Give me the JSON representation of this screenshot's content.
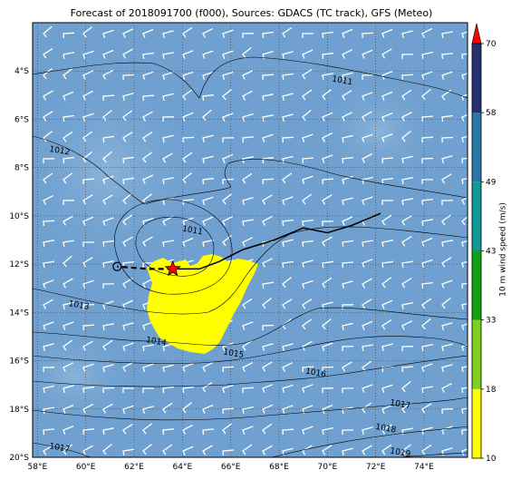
{
  "title": "Forecast of 2018091700 (f000), Sources: GDACS (TC track), GFS (Meteo)",
  "map": {
    "lon_range": [
      57.8,
      75.8
    ],
    "lat_range": [
      -20,
      -2
    ],
    "lat_labels": [
      "4°S",
      "6°S",
      "8°S",
      "10°S",
      "12°S",
      "14°S",
      "16°S",
      "18°S",
      "20°S"
    ],
    "lat_values": [
      -4,
      -6,
      -8,
      -10,
      -12,
      -14,
      -16,
      -18,
      -20
    ],
    "lon_labels": [
      "58°E",
      "60°E",
      "62°E",
      "64°E",
      "66°E",
      "68°E",
      "70°E",
      "72°E",
      "74°E"
    ],
    "lon_values": [
      58,
      60,
      62,
      64,
      66,
      68,
      70,
      72,
      74
    ],
    "ocean_color": "#6fa0cf",
    "isobar_labels": [
      {
        "text": "1011",
        "lon": 70.6,
        "lat": -4.5
      },
      {
        "text": "1012",
        "lon": 58.9,
        "lat": -7.4
      },
      {
        "text": "1011",
        "lon": 64.4,
        "lat": -10.7
      },
      {
        "text": "1013",
        "lon": 59.7,
        "lat": -13.8
      },
      {
        "text": "1014",
        "lon": 62.9,
        "lat": -15.3
      },
      {
        "text": "1015",
        "lon": 66.1,
        "lat": -15.8
      },
      {
        "text": "1016",
        "lon": 69.5,
        "lat": -16.6
      },
      {
        "text": "1017",
        "lon": 73.0,
        "lat": -17.9
      },
      {
        "text": "1018",
        "lon": 72.4,
        "lat": -18.9
      },
      {
        "text": "1019",
        "lon": 73.0,
        "lat": -19.9
      },
      {
        "text": "1017",
        "lon": 58.9,
        "lat": -19.7
      }
    ]
  },
  "track": {
    "observed": [
      [
        72.2,
        -9.9
      ],
      [
        71.0,
        -10.4
      ],
      [
        70.0,
        -10.7
      ],
      [
        69.0,
        -10.5
      ],
      [
        67.8,
        -11.0
      ],
      [
        66.5,
        -11.4
      ],
      [
        65.5,
        -11.9
      ],
      [
        64.7,
        -12.2
      ],
      [
        63.6,
        -12.2
      ]
    ],
    "forecast": [
      [
        63.6,
        -12.2
      ],
      [
        62.6,
        -12.2
      ],
      [
        61.3,
        -12.1
      ]
    ],
    "current_position": [
      63.6,
      -12.2
    ],
    "start_marker": [
      61.3,
      -12.1
    ]
  },
  "colorbar": {
    "label": "10 m wind speed (m/s)",
    "ticks": [
      "10",
      "18",
      "33",
      "43",
      "49",
      "58",
      "70"
    ],
    "segments": [
      {
        "from": 10,
        "to": 18,
        "color": "#ffff00"
      },
      {
        "from": 18,
        "to": 33,
        "color": "#7fcf1f"
      },
      {
        "from": 33,
        "to": 43,
        "color": "#10a010"
      },
      {
        "from": 43,
        "to": 49,
        "color": "#0e9b95"
      },
      {
        "from": 49,
        "to": 58,
        "color": "#2778a8"
      },
      {
        "from": 58,
        "to": 70,
        "color": "#27306e"
      }
    ],
    "extend_color": "#ff0000"
  },
  "colors": {
    "wind_area": "#ffff00",
    "barb": "#ffffff",
    "isobar": "#000000",
    "star": "#ff0000"
  }
}
